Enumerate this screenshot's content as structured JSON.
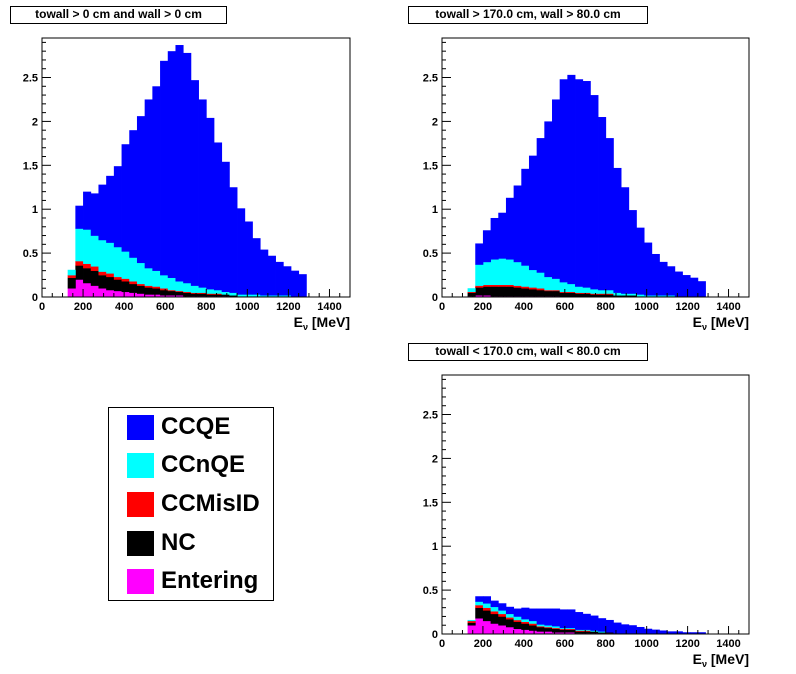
{
  "colors": {
    "CCQE": "#0000ff",
    "CCnQE": "#00ffff",
    "CCMisID": "#ff0000",
    "NC": "#000000",
    "Entering": "#ff00ff"
  },
  "legend": {
    "entries": [
      {
        "label": "CCQE",
        "color": "#0000ff"
      },
      {
        "label": "CCnQE",
        "color": "#00ffff"
      },
      {
        "label": "CCMisID",
        "color": "#ff0000"
      },
      {
        "label": "NC",
        "color": "#000000"
      },
      {
        "label": "Entering",
        "color": "#ff00ff"
      }
    ]
  },
  "chart_data": [
    {
      "type": "bar",
      "stacked": true,
      "title": "towall > 0 cm and wall > 0 cm",
      "xlabel_main": "E",
      "xlabel_sub": "ν",
      "xlabel_unit": " [MeV]",
      "xlim": [
        0,
        1500
      ],
      "ylim": [
        0,
        2.95
      ],
      "xticks": [
        0,
        200,
        400,
        600,
        800,
        1000,
        1200,
        1400
      ],
      "yticks": [
        0,
        0.5,
        1,
        1.5,
        2,
        2.5
      ],
      "ytick_labels": [
        "0",
        "0.5",
        "1",
        "1.5",
        "2",
        "2.5"
      ],
      "bin_start": 125,
      "bin_width": 37.5,
      "series": [
        {
          "name": "Entering",
          "values": [
            0.1,
            0.2,
            0.16,
            0.13,
            0.1,
            0.08,
            0.07,
            0.06,
            0.05,
            0.04,
            0.03,
            0.03,
            0.02,
            0.02,
            0.02,
            0.01,
            0.01,
            0.01,
            0.01,
            0.01,
            0.01,
            0.0,
            0.0,
            0.0,
            0.0,
            0.0,
            0.0,
            0.0,
            0.0,
            0.0,
            0.0,
            0.0
          ]
        },
        {
          "name": "NC",
          "values": [
            0.12,
            0.16,
            0.17,
            0.17,
            0.15,
            0.15,
            0.13,
            0.12,
            0.1,
            0.09,
            0.08,
            0.07,
            0.06,
            0.05,
            0.04,
            0.04,
            0.03,
            0.03,
            0.02,
            0.02,
            0.02,
            0.02,
            0.01,
            0.01,
            0.01,
            0.01,
            0.01,
            0.01,
            0.01,
            0.0,
            0.0,
            0.0
          ]
        },
        {
          "name": "CCMisID",
          "values": [
            0.03,
            0.05,
            0.05,
            0.05,
            0.04,
            0.04,
            0.03,
            0.03,
            0.03,
            0.02,
            0.02,
            0.02,
            0.02,
            0.01,
            0.01,
            0.01,
            0.01,
            0.01,
            0.01,
            0.01,
            0.0,
            0.0,
            0.0,
            0.0,
            0.0,
            0.0,
            0.0,
            0.0,
            0.0,
            0.0,
            0.0,
            0.0
          ]
        },
        {
          "name": "CCnQE",
          "values": [
            0.06,
            0.37,
            0.39,
            0.35,
            0.36,
            0.35,
            0.34,
            0.31,
            0.27,
            0.24,
            0.2,
            0.18,
            0.15,
            0.14,
            0.11,
            0.1,
            0.08,
            0.06,
            0.05,
            0.04,
            0.03,
            0.03,
            0.02,
            0.02,
            0.02,
            0.01,
            0.01,
            0.01,
            0.01,
            0.0,
            0.0,
            0.0
          ]
        },
        {
          "name": "CCQE",
          "values": [
            0.0,
            0.26,
            0.43,
            0.48,
            0.63,
            0.76,
            0.92,
            1.22,
            1.45,
            1.67,
            1.92,
            2.1,
            2.44,
            2.58,
            2.69,
            2.62,
            2.34,
            2.14,
            1.95,
            1.68,
            1.48,
            1.2,
            0.98,
            0.83,
            0.64,
            0.52,
            0.45,
            0.38,
            0.33,
            0.3,
            0.26,
            0.0
          ]
        }
      ]
    },
    {
      "type": "bar",
      "stacked": true,
      "title": "towall > 170.0 cm, wall > 80.0 cm",
      "xlabel_main": "E",
      "xlabel_sub": "ν",
      "xlabel_unit": " [MeV]",
      "xlim": [
        0,
        1500
      ],
      "ylim": [
        0,
        2.95
      ],
      "xticks": [
        0,
        200,
        400,
        600,
        800,
        1000,
        1200,
        1400
      ],
      "yticks": [
        0,
        0.5,
        1,
        1.5,
        2,
        2.5
      ],
      "ytick_labels": [
        "0",
        "0.5",
        "1",
        "1.5",
        "2",
        "2.5"
      ],
      "bin_start": 125,
      "bin_width": 37.5,
      "series": [
        {
          "name": "Entering",
          "values": [
            0.01,
            0.02,
            0.02,
            0.01,
            0.01,
            0.01,
            0.01,
            0.01,
            0.01,
            0.01,
            0.01,
            0.01,
            0.0,
            0.0,
            0.0,
            0.0,
            0.0,
            0.0,
            0.0,
            0.0,
            0.0,
            0.0,
            0.0,
            0.0,
            0.0,
            0.0,
            0.0,
            0.0,
            0.0,
            0.0,
            0.0,
            0.0
          ]
        },
        {
          "name": "NC",
          "values": [
            0.04,
            0.09,
            0.1,
            0.11,
            0.11,
            0.11,
            0.1,
            0.09,
            0.08,
            0.07,
            0.06,
            0.06,
            0.05,
            0.05,
            0.04,
            0.04,
            0.03,
            0.03,
            0.03,
            0.02,
            0.02,
            0.02,
            0.01,
            0.01,
            0.01,
            0.01,
            0.01,
            0.01,
            0.01,
            0.0,
            0.0,
            0.0
          ]
        },
        {
          "name": "CCMisID",
          "values": [
            0.01,
            0.02,
            0.02,
            0.02,
            0.02,
            0.02,
            0.02,
            0.02,
            0.02,
            0.02,
            0.01,
            0.01,
            0.01,
            0.01,
            0.01,
            0.01,
            0.01,
            0.01,
            0.01,
            0.0,
            0.0,
            0.0,
            0.0,
            0.0,
            0.0,
            0.0,
            0.0,
            0.0,
            0.0,
            0.0,
            0.0,
            0.0
          ]
        },
        {
          "name": "CCnQE",
          "values": [
            0.04,
            0.24,
            0.26,
            0.29,
            0.3,
            0.29,
            0.27,
            0.24,
            0.2,
            0.18,
            0.15,
            0.13,
            0.11,
            0.09,
            0.07,
            0.06,
            0.05,
            0.04,
            0.04,
            0.03,
            0.02,
            0.02,
            0.02,
            0.01,
            0.01,
            0.01,
            0.01,
            0.0,
            0.0,
            0.0,
            0.0,
            0.0
          ]
        },
        {
          "name": "CCQE",
          "values": [
            0.0,
            0.24,
            0.36,
            0.47,
            0.52,
            0.7,
            0.87,
            1.1,
            1.3,
            1.53,
            1.77,
            2.04,
            2.31,
            2.38,
            2.36,
            2.35,
            2.21,
            1.97,
            1.73,
            1.42,
            1.21,
            0.95,
            0.76,
            0.6,
            0.47,
            0.38,
            0.33,
            0.28,
            0.24,
            0.22,
            0.18,
            0.0
          ]
        }
      ]
    },
    {
      "type": "bar",
      "stacked": true,
      "title": "towall < 170.0 cm, wall < 80.0 cm",
      "xlabel_main": "E",
      "xlabel_sub": "ν",
      "xlabel_unit": " [MeV]",
      "xlim": [
        0,
        1500
      ],
      "ylim": [
        0,
        2.95
      ],
      "xticks": [
        0,
        200,
        400,
        600,
        800,
        1000,
        1200,
        1400
      ],
      "yticks": [
        0,
        0.5,
        1,
        1.5,
        2,
        2.5
      ],
      "ytick_labels": [
        "0",
        "0.5",
        "1",
        "1.5",
        "2",
        "2.5"
      ],
      "bin_start": 125,
      "bin_width": 37.5,
      "series": [
        {
          "name": "Entering",
          "values": [
            0.1,
            0.18,
            0.15,
            0.12,
            0.1,
            0.08,
            0.06,
            0.05,
            0.04,
            0.03,
            0.03,
            0.02,
            0.02,
            0.02,
            0.01,
            0.01,
            0.01,
            0.01,
            0.01,
            0.0,
            0.0,
            0.0,
            0.0,
            0.0,
            0.0,
            0.0,
            0.0,
            0.0,
            0.0,
            0.0,
            0.0,
            0.0
          ]
        },
        {
          "name": "NC",
          "values": [
            0.03,
            0.12,
            0.12,
            0.11,
            0.1,
            0.09,
            0.08,
            0.07,
            0.06,
            0.05,
            0.04,
            0.04,
            0.03,
            0.03,
            0.02,
            0.02,
            0.02,
            0.01,
            0.01,
            0.01,
            0.01,
            0.01,
            0.01,
            0.0,
            0.0,
            0.0,
            0.0,
            0.0,
            0.0,
            0.0,
            0.0,
            0.0
          ]
        },
        {
          "name": "CCMisID",
          "values": [
            0.02,
            0.03,
            0.03,
            0.03,
            0.03,
            0.02,
            0.02,
            0.02,
            0.02,
            0.01,
            0.01,
            0.01,
            0.01,
            0.01,
            0.01,
            0.01,
            0.0,
            0.0,
            0.0,
            0.0,
            0.0,
            0.0,
            0.0,
            0.0,
            0.0,
            0.0,
            0.0,
            0.0,
            0.0,
            0.0,
            0.0,
            0.0
          ]
        },
        {
          "name": "CCnQE",
          "values": [
            0.01,
            0.04,
            0.05,
            0.05,
            0.04,
            0.04,
            0.04,
            0.03,
            0.03,
            0.02,
            0.02,
            0.02,
            0.01,
            0.01,
            0.01,
            0.01,
            0.01,
            0.01,
            0.0,
            0.0,
            0.0,
            0.0,
            0.0,
            0.0,
            0.0,
            0.0,
            0.0,
            0.0,
            0.0,
            0.0,
            0.0,
            0.0
          ]
        },
        {
          "name": "CCQE",
          "values": [
            0.0,
            0.06,
            0.08,
            0.07,
            0.08,
            0.08,
            0.09,
            0.13,
            0.14,
            0.18,
            0.19,
            0.2,
            0.21,
            0.21,
            0.2,
            0.18,
            0.17,
            0.15,
            0.14,
            0.12,
            0.1,
            0.09,
            0.07,
            0.06,
            0.05,
            0.04,
            0.03,
            0.03,
            0.02,
            0.02,
            0.02,
            0.0
          ]
        }
      ]
    }
  ]
}
